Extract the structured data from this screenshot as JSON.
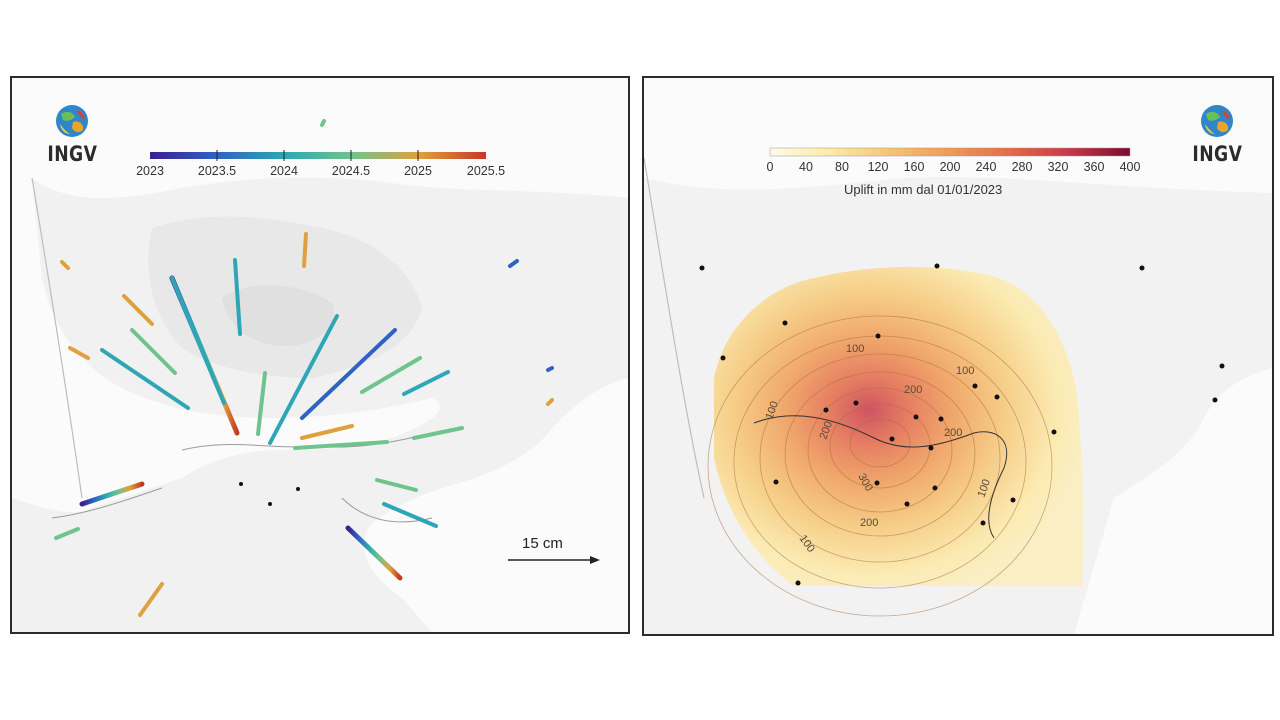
{
  "left_panel": {
    "logo_text": "INGV",
    "logo_icon": "globe-logo-icon",
    "colorbar": {
      "ticks": [
        "2023",
        "2023.5",
        "2024",
        "2024.5",
        "2025",
        "2025.5"
      ],
      "colors": [
        "#3b1f8f",
        "#2f63c2",
        "#2fa6b5",
        "#6fc38c",
        "#e0a040",
        "#c43a1f"
      ]
    },
    "scale_label": "15 cm",
    "arrow_icon": "scale-arrow-icon"
  },
  "right_panel": {
    "logo_text": "INGV",
    "logo_icon": "globe-logo-icon",
    "colorbar": {
      "ticks": [
        "0",
        "40",
        "80",
        "120",
        "160",
        "200",
        "240",
        "280",
        "320",
        "360",
        "400"
      ],
      "title": "Uplift in mm dal 01/01/2023",
      "colors": [
        "#fffbe8",
        "#fde9a6",
        "#f6c572",
        "#f09a54",
        "#e46a48",
        "#c9384a",
        "#7a0c2e"
      ]
    },
    "contour_labels": [
      "100",
      "100",
      "100",
      "100",
      "100",
      "200",
      "200",
      "200",
      "200",
      "300"
    ]
  }
}
